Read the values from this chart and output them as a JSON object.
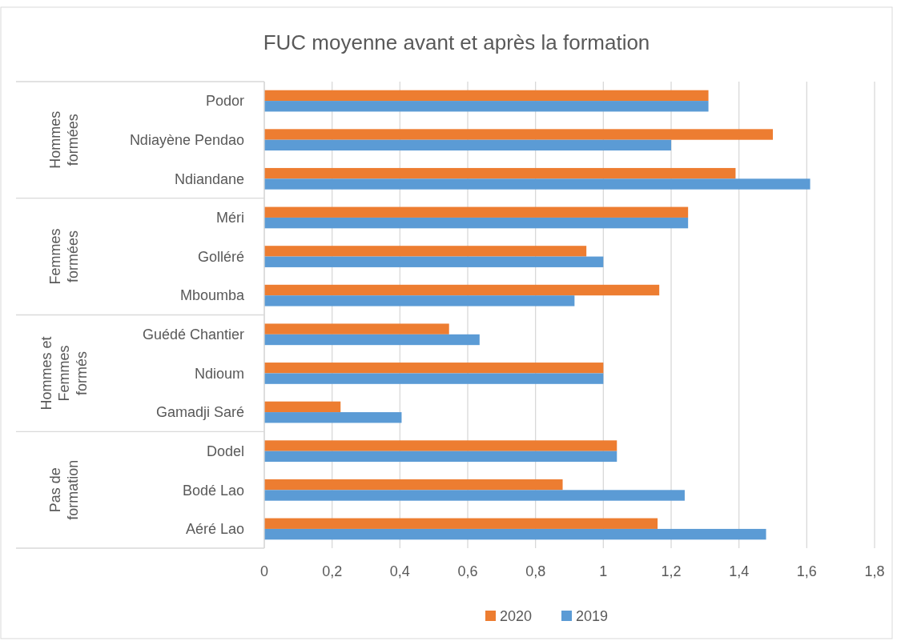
{
  "chart_data": {
    "type": "bar",
    "orientation": "horizontal",
    "title": "FUC moyenne avant et après la formation",
    "categories": [
      "Podor",
      "Ndiayène Pendao",
      "Ndiandane",
      "Méri",
      "Golléré",
      "Mboumba",
      "Guédé Chantier",
      "Ndioum",
      "Gamadji Saré",
      "Dodel",
      "Bodé Lao",
      "Aéré Lao"
    ],
    "series": [
      {
        "name": "2020",
        "color": "#ed7d31",
        "values": [
          1.31,
          1.5,
          1.39,
          1.25,
          0.95,
          1.165,
          0.545,
          1.0,
          0.225,
          1.04,
          0.88,
          1.16
        ]
      },
      {
        "name": "2019",
        "color": "#5b9bd5",
        "values": [
          1.31,
          1.2,
          1.61,
          1.25,
          1.0,
          0.915,
          0.635,
          1.0,
          0.405,
          1.04,
          1.24,
          1.48
        ]
      }
    ],
    "xlim": [
      0,
      1.8
    ],
    "xticks": [
      {
        "value": 0,
        "label": "0"
      },
      {
        "value": 0.2,
        "label": "0,2"
      },
      {
        "value": 0.4,
        "label": "0,4"
      },
      {
        "value": 0.6,
        "label": "0,6"
      },
      {
        "value": 0.8,
        "label": "0,8"
      },
      {
        "value": 1,
        "label": "1"
      },
      {
        "value": 1.2,
        "label": "1,2"
      },
      {
        "value": 1.4,
        "label": "1,4"
      },
      {
        "value": 1.6,
        "label": "1,6"
      },
      {
        "value": 1.8,
        "label": "1,8"
      }
    ],
    "grid": "x",
    "legend": "bottom",
    "annotations": [
      "Hommes formées",
      "Femmes formées",
      "Hommes et Femmes formés",
      "Pas de formation"
    ]
  }
}
